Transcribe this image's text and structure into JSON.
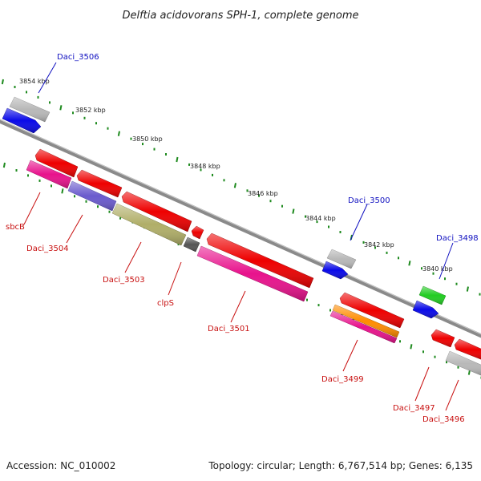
{
  "title": "Delftia acidovorans SPH-1, complete genome",
  "footer": {
    "accession": "Accession: NC_010002",
    "stats": "Topology: circular; Length: 6,767,514 bp; Genes: 6,135"
  },
  "scale_labels": [
    "3854 kbp",
    "3852 kbp",
    "3850 kbp",
    "3848 kbp",
    "3846 kbp",
    "3844 kbp",
    "3842 kbp",
    "3840 kbp"
  ],
  "colors": {
    "backbone": "#8a8a8a",
    "tick": "#1e8a1e",
    "forward_label": "#1010c0",
    "reverse_label": "#c81010"
  },
  "genes": [
    {
      "id": "g3506a",
      "color": "#b8b8b8",
      "label": "Daci_3506",
      "strand": "forward",
      "lane": "outer"
    },
    {
      "id": "g3506b",
      "color": "#0a0ae8",
      "strand": "forward",
      "lane": "inner"
    },
    {
      "id": "g3500a",
      "color": "#b8b8b8",
      "label": "Daci_3500",
      "strand": "forward",
      "lane": "outer"
    },
    {
      "id": "g3500b",
      "color": "#0a0ae8",
      "strand": "forward",
      "lane": "inner"
    },
    {
      "id": "g3498a",
      "color": "#22cc22",
      "label": "Daci_3498",
      "strand": "forward",
      "lane": "outer"
    },
    {
      "id": "g3498b",
      "color": "#0a0ae8",
      "strand": "forward",
      "lane": "inner"
    },
    {
      "id": "r3504a",
      "color": "#ee0000",
      "strand": "reverse",
      "lane": "outer"
    },
    {
      "id": "r3504b",
      "color": "#ee0000",
      "strand": "reverse",
      "lane": "outer"
    },
    {
      "id": "r3503",
      "color": "#ee0000",
      "strand": "reverse",
      "lane": "outer"
    },
    {
      "id": "rclp",
      "color": "#ee0000",
      "strand": "reverse",
      "lane": "outer"
    },
    {
      "id": "r3501",
      "color": "#ee0000",
      "strand": "reverse",
      "lane": "outer"
    },
    {
      "id": "r3499",
      "color": "#ee0000",
      "strand": "reverse",
      "lane": "outer"
    },
    {
      "id": "r3497",
      "color": "#ee0000",
      "strand": "reverse",
      "lane": "outer"
    },
    {
      "id": "r3496",
      "color": "#ee0000",
      "strand": "reverse",
      "lane": "outer"
    },
    {
      "id": "sbcB",
      "color": "#e8128c",
      "label": "sbcB",
      "strand": "reverse",
      "lane": "mid"
    },
    {
      "id": "d3504",
      "color": "#6a5acd",
      "label": "Daci_3504",
      "strand": "reverse",
      "lane": "mid"
    },
    {
      "id": "d3503",
      "color": "#b0ae68",
      "label": "Daci_3503",
      "strand": "reverse",
      "lane": "mid"
    },
    {
      "id": "clpS",
      "color": "#555555",
      "label": "clpS",
      "strand": "reverse",
      "lane": "mid"
    },
    {
      "id": "d3501",
      "color": "#e8128c",
      "label": "Daci_3501",
      "strand": "reverse",
      "lane": "mid"
    },
    {
      "id": "d3499o",
      "color": "#ff8c00",
      "strand": "reverse",
      "lane": "mid"
    },
    {
      "id": "d3499",
      "color": "#e8128c",
      "label": "Daci_3499",
      "strand": "reverse",
      "lane": "mid"
    },
    {
      "id": "d3497",
      "color": "#ee0000",
      "label": "Daci_3497",
      "strand": "reverse",
      "lane": "mid"
    },
    {
      "id": "d3496",
      "color": "#b8b8b8",
      "label": "Daci_3496",
      "strand": "reverse",
      "lane": "mid"
    }
  ]
}
